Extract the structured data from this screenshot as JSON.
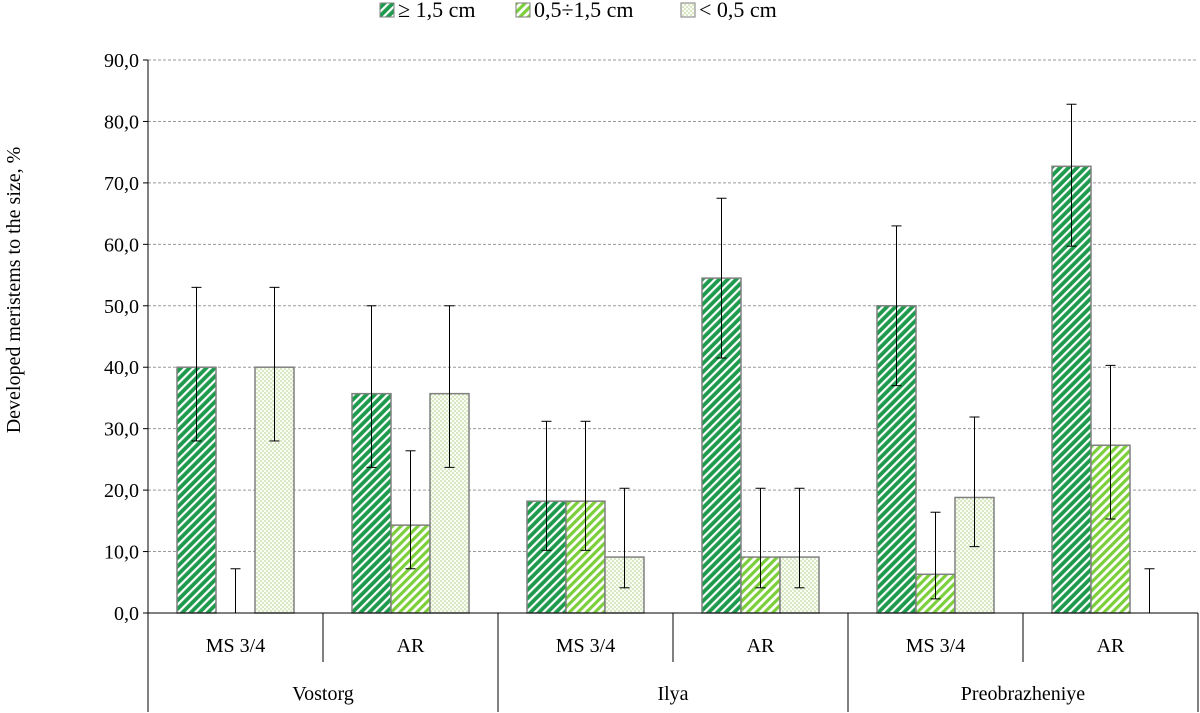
{
  "chart_data": {
    "type": "bar",
    "title": "",
    "ylabel": "Developed meristems to the size, %",
    "xlabel": "",
    "ylim": [
      0,
      90
    ],
    "ytick_step": 10,
    "ytick_labels": [
      "0,0",
      "10,0",
      "20,0",
      "30,0",
      "40,0",
      "50,0",
      "60,0",
      "70,0",
      "80,0",
      "90,0"
    ],
    "grid": true,
    "legend_position": "top",
    "groups": [
      {
        "label": "Vostorg",
        "categories": [
          "MS 3/4",
          "AR"
        ]
      },
      {
        "label": "Ilya",
        "categories": [
          "MS 3/4",
          "AR"
        ]
      },
      {
        "label": "Preobrazheniye",
        "categories": [
          "MS 3/4",
          "AR"
        ]
      }
    ],
    "series": [
      {
        "name": "≥ 1,5 cm",
        "color": "#1e9a4c",
        "pattern": "dense-diagonal",
        "values": [
          40.0,
          35.7,
          18.2,
          54.5,
          50.0,
          72.7
        ],
        "err_low": [
          28.0,
          23.7,
          10.2,
          41.5,
          37.0,
          59.7
        ],
        "err_high": [
          53.0,
          50.0,
          31.2,
          67.5,
          63.0,
          82.8
        ]
      },
      {
        "name": "0,5÷1,5 cm",
        "color": "#7ccf3a",
        "pattern": "light-diagonal",
        "values": [
          0.0,
          14.3,
          18.2,
          9.1,
          6.3,
          27.3
        ],
        "err_low": [
          0.0,
          7.2,
          10.2,
          4.1,
          2.3,
          15.3
        ],
        "err_high": [
          7.2,
          26.4,
          31.2,
          20.3,
          16.4,
          40.3
        ]
      },
      {
        "name": "< 0,5 cm",
        "color": "#bfe6a0",
        "pattern": "dots",
        "values": [
          40.0,
          35.7,
          9.1,
          9.1,
          18.8,
          0.0
        ],
        "err_low": [
          28.0,
          23.7,
          4.1,
          4.1,
          10.8,
          0.0
        ],
        "err_high": [
          53.0,
          50.0,
          20.3,
          20.3,
          31.9,
          7.2
        ]
      }
    ]
  }
}
